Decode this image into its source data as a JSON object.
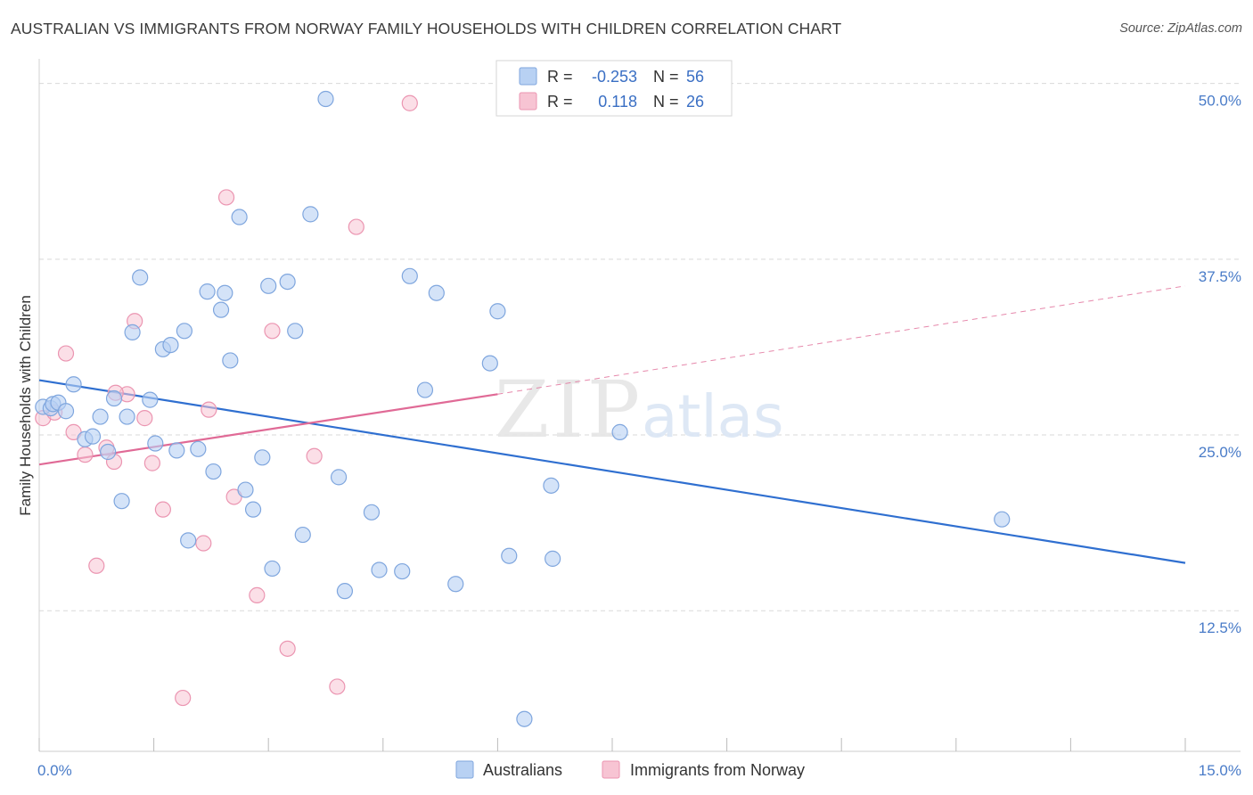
{
  "header": {
    "title": "AUSTRALIAN VS IMMIGRANTS FROM NORWAY FAMILY HOUSEHOLDS WITH CHILDREN CORRELATION CHART",
    "source": "Source: ZipAtlas.com"
  },
  "watermark": {
    "zip": "ZIP",
    "atlas": "atlas"
  },
  "legend": {
    "rows": [
      {
        "r_label": "R =",
        "r_value": "-0.253",
        "n_label": "N =",
        "n_value": "56"
      },
      {
        "r_label": "R =",
        "r_value": "0.118",
        "n_label": "N =",
        "n_value": "26"
      }
    ]
  },
  "bottom_legend": {
    "australians": "Australians",
    "norway": "Immigrants from Norway"
  },
  "colors": {
    "blue_fill": "#b8d1f3",
    "blue_stroke": "#7fa6de",
    "blue_line": "#2f6fd0",
    "pink_fill": "#f7c4d3",
    "pink_stroke": "#eb95b1",
    "pink_line": "#e06a96",
    "tick_text": "#4a7cc8",
    "grid": "#d9d9d9"
  },
  "chart_data": {
    "type": "scatter",
    "title": "AUSTRALIAN VS IMMIGRANTS FROM NORWAY FAMILY HOUSEHOLDS WITH CHILDREN CORRELATION CHART",
    "xlabel": "",
    "ylabel": "Family Households with Children",
    "xlim": [
      0,
      15
    ],
    "ylim": [
      2.5,
      51.5
    ],
    "x_tick_labels": [
      "0.0%",
      "15.0%"
    ],
    "y_ticks": [
      12.5,
      25.0,
      37.5,
      50.0
    ],
    "y_tick_labels": [
      "12.5%",
      "25.0%",
      "37.5%",
      "50.0%"
    ],
    "grid": true,
    "legend_position": "top-center",
    "series": [
      {
        "name": "Australians",
        "color": "#b8d1f3",
        "r": -0.253,
        "n": 56,
        "trend": {
          "x": [
            0,
            15
          ],
          "y": [
            28.9,
            15.9
          ],
          "style": "solid"
        },
        "points": [
          [
            0.05,
            27.0
          ],
          [
            0.15,
            26.9
          ],
          [
            0.18,
            27.2
          ],
          [
            0.25,
            27.3
          ],
          [
            0.35,
            26.7
          ],
          [
            0.45,
            28.6
          ],
          [
            0.6,
            24.7
          ],
          [
            0.7,
            24.9
          ],
          [
            0.8,
            26.3
          ],
          [
            0.9,
            23.8
          ],
          [
            0.98,
            27.6
          ],
          [
            1.08,
            20.3
          ],
          [
            1.15,
            26.3
          ],
          [
            1.22,
            32.3
          ],
          [
            1.32,
            36.2
          ],
          [
            1.45,
            27.5
          ],
          [
            1.52,
            24.4
          ],
          [
            1.62,
            31.1
          ],
          [
            1.72,
            31.4
          ],
          [
            1.8,
            23.9
          ],
          [
            1.9,
            32.4
          ],
          [
            1.95,
            17.5
          ],
          [
            2.08,
            24.0
          ],
          [
            2.2,
            35.2
          ],
          [
            2.28,
            22.4
          ],
          [
            2.38,
            33.9
          ],
          [
            2.43,
            35.1
          ],
          [
            2.5,
            30.3
          ],
          [
            2.62,
            40.5
          ],
          [
            2.7,
            21.1
          ],
          [
            2.8,
            19.7
          ],
          [
            2.92,
            23.4
          ],
          [
            3.0,
            35.6
          ],
          [
            3.05,
            15.5
          ],
          [
            3.25,
            35.9
          ],
          [
            3.35,
            32.4
          ],
          [
            3.45,
            17.9
          ],
          [
            3.55,
            40.7
          ],
          [
            3.75,
            48.9
          ],
          [
            3.92,
            22.0
          ],
          [
            4.0,
            13.9
          ],
          [
            4.35,
            19.5
          ],
          [
            4.45,
            15.4
          ],
          [
            4.75,
            15.3
          ],
          [
            4.85,
            36.3
          ],
          [
            5.05,
            28.2
          ],
          [
            5.2,
            35.1
          ],
          [
            5.45,
            14.4
          ],
          [
            5.9,
            30.1
          ],
          [
            6.0,
            33.8
          ],
          [
            6.15,
            16.4
          ],
          [
            6.35,
            4.8
          ],
          [
            6.7,
            21.4
          ],
          [
            6.72,
            16.2
          ],
          [
            7.6,
            25.2
          ],
          [
            12.6,
            19.0
          ]
        ]
      },
      {
        "name": "Immigrants from Norway",
        "color": "#f7c4d3",
        "r": 0.118,
        "n": 26,
        "trend_solid": {
          "x": [
            0,
            6.0
          ],
          "y": [
            22.9,
            27.9
          ]
        },
        "trend_dashed": {
          "x": [
            6.0,
            15
          ],
          "y": [
            27.9,
            35.6
          ]
        },
        "points": [
          [
            0.05,
            26.2
          ],
          [
            0.35,
            30.8
          ],
          [
            0.45,
            25.2
          ],
          [
            0.6,
            23.6
          ],
          [
            0.75,
            15.7
          ],
          [
            0.88,
            24.1
          ],
          [
            0.98,
            23.1
          ],
          [
            1.15,
            27.9
          ],
          [
            1.25,
            33.1
          ],
          [
            1.38,
            26.2
          ],
          [
            1.48,
            23.0
          ],
          [
            1.62,
            19.7
          ],
          [
            1.88,
            6.3
          ],
          [
            2.15,
            17.3
          ],
          [
            2.22,
            26.8
          ],
          [
            2.45,
            41.9
          ],
          [
            2.55,
            20.6
          ],
          [
            2.85,
            13.6
          ],
          [
            3.05,
            32.4
          ],
          [
            3.25,
            9.8
          ],
          [
            3.6,
            23.5
          ],
          [
            3.9,
            7.1
          ],
          [
            4.15,
            39.8
          ],
          [
            4.85,
            48.6
          ],
          [
            0.2,
            26.6
          ],
          [
            1.0,
            28.0
          ]
        ]
      }
    ]
  }
}
